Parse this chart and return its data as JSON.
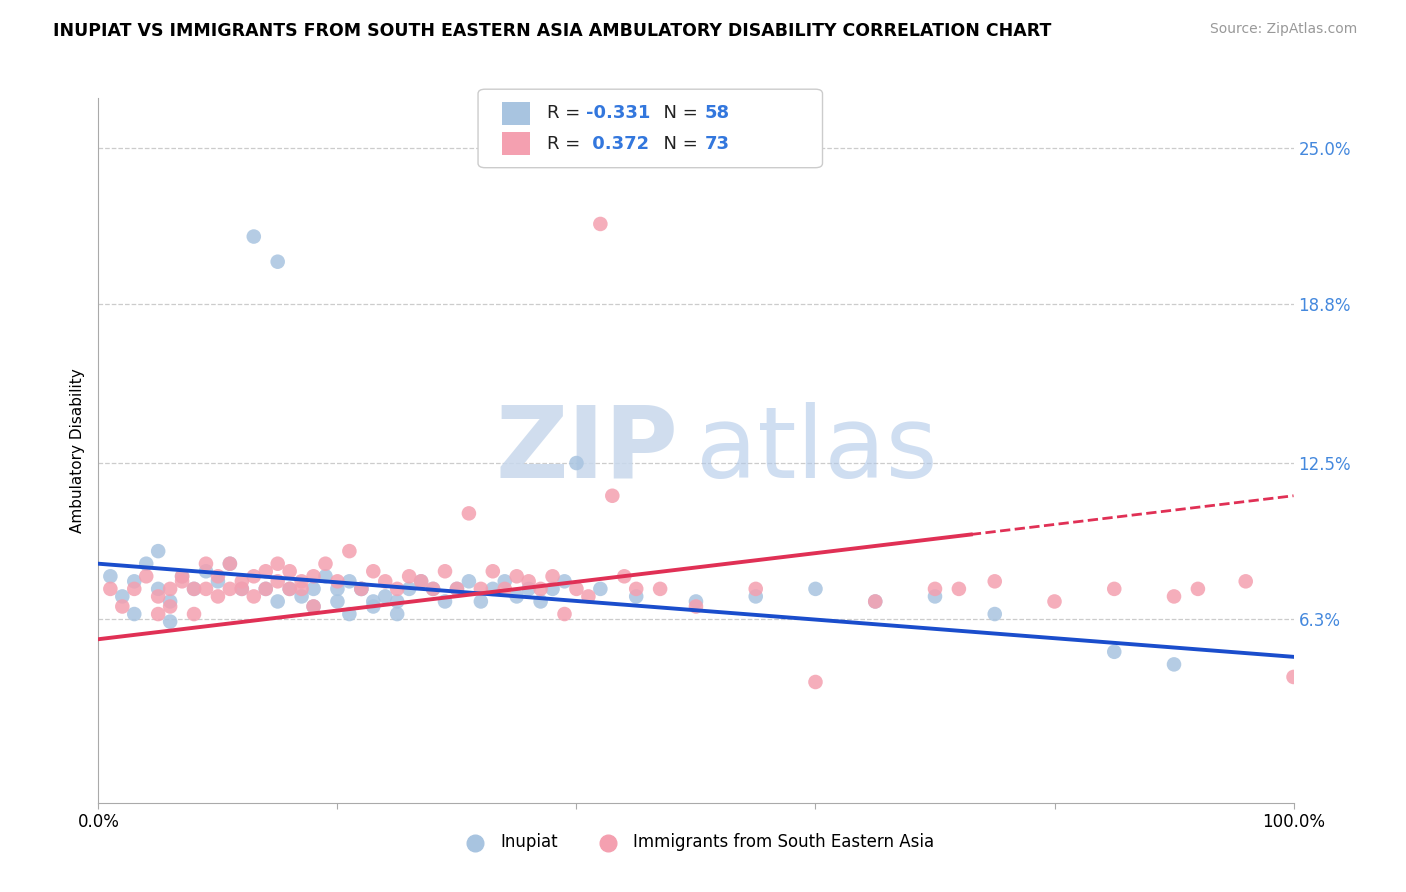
{
  "title": "INUPIAT VS IMMIGRANTS FROM SOUTH EASTERN ASIA AMBULATORY DISABILITY CORRELATION CHART",
  "source": "Source: ZipAtlas.com",
  "ylabel": "Ambulatory Disability",
  "xlim": [
    0,
    100
  ],
  "ylim": [
    -1,
    27
  ],
  "ytick_vals": [
    6.3,
    12.5,
    18.8,
    25.0
  ],
  "ytick_labels": [
    "6.3%",
    "12.5%",
    "18.8%",
    "25.0%"
  ],
  "xtick_vals": [
    0,
    20,
    40,
    60,
    80,
    100
  ],
  "xtick_labels": [
    "0.0%",
    "",
    "",
    "",
    "",
    "100.0%"
  ],
  "bg_color": "#ffffff",
  "grid_color": "#cccccc",
  "inupiat_color": "#a8c4e0",
  "sea_color": "#f4a0b0",
  "inupiat_line_color": "#1a4dcc",
  "sea_line_color": "#e03055",
  "inupiat_line_start_y": 8.5,
  "inupiat_line_end_y": 4.8,
  "sea_line_start_y": 5.5,
  "sea_line_end_y": 11.2,
  "sea_solid_end_x": 73,
  "inupiat_x": [
    1,
    2,
    3,
    3,
    4,
    5,
    5,
    6,
    6,
    7,
    8,
    9,
    10,
    11,
    12,
    13,
    14,
    15,
    15,
    16,
    17,
    18,
    18,
    19,
    20,
    20,
    21,
    21,
    22,
    22,
    23,
    23,
    24,
    25,
    25,
    26,
    27,
    28,
    29,
    30,
    31,
    32,
    33,
    34,
    35,
    36,
    37,
    38,
    39,
    40,
    42,
    45,
    50,
    55,
    60,
    65,
    70,
    75,
    85,
    90
  ],
  "inupiat_y": [
    8.0,
    7.2,
    6.5,
    7.8,
    8.5,
    7.5,
    9.0,
    7.0,
    6.2,
    8.0,
    7.5,
    8.2,
    7.8,
    8.5,
    7.5,
    21.5,
    7.5,
    20.5,
    7.0,
    7.5,
    7.2,
    6.8,
    7.5,
    8.0,
    7.5,
    7.0,
    7.8,
    6.5,
    7.5,
    7.5,
    7.0,
    6.8,
    7.2,
    6.5,
    7.0,
    7.5,
    7.8,
    7.5,
    7.0,
    7.5,
    7.8,
    7.0,
    7.5,
    7.8,
    7.2,
    7.5,
    7.0,
    7.5,
    7.8,
    12.5,
    7.5,
    7.2,
    7.0,
    7.2,
    7.5,
    7.0,
    7.2,
    6.5,
    5.0,
    4.5
  ],
  "sea_x": [
    1,
    2,
    3,
    4,
    5,
    5,
    6,
    6,
    7,
    7,
    8,
    8,
    9,
    9,
    10,
    10,
    11,
    11,
    12,
    12,
    13,
    13,
    14,
    14,
    15,
    15,
    16,
    16,
    17,
    17,
    18,
    18,
    19,
    20,
    21,
    22,
    23,
    24,
    25,
    26,
    27,
    28,
    29,
    30,
    31,
    32,
    33,
    34,
    35,
    36,
    37,
    38,
    39,
    40,
    41,
    42,
    43,
    44,
    45,
    47,
    50,
    55,
    60,
    65,
    70,
    72,
    75,
    80,
    85,
    90,
    92,
    96,
    100
  ],
  "sea_y": [
    7.5,
    6.8,
    7.5,
    8.0,
    7.2,
    6.5,
    6.8,
    7.5,
    7.8,
    8.0,
    7.5,
    6.5,
    8.5,
    7.5,
    7.2,
    8.0,
    7.5,
    8.5,
    7.5,
    7.8,
    8.0,
    7.2,
    8.2,
    7.5,
    7.8,
    8.5,
    7.5,
    8.2,
    7.8,
    7.5,
    8.0,
    6.8,
    8.5,
    7.8,
    9.0,
    7.5,
    8.2,
    7.8,
    7.5,
    8.0,
    7.8,
    7.5,
    8.2,
    7.5,
    10.5,
    7.5,
    8.2,
    7.5,
    8.0,
    7.8,
    7.5,
    8.0,
    6.5,
    7.5,
    7.2,
    22.0,
    11.2,
    8.0,
    7.5,
    7.5,
    6.8,
    7.5,
    3.8,
    7.0,
    7.5,
    7.5,
    7.8,
    7.0,
    7.5,
    7.2,
    7.5,
    7.8,
    4.0
  ]
}
